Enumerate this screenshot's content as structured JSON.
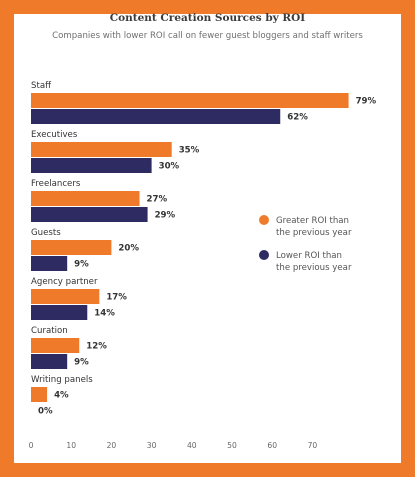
{
  "chart_data": {
    "type": "bar",
    "orientation": "horizontal",
    "title": "Content Creation Sources by ROI",
    "subtitle": "Companies with lower ROI call on fewer guest bloggers and staff writers",
    "categories": [
      "Staff",
      "Executives",
      "Freelancers",
      "Guests",
      "Agency partner",
      "Curation",
      "Writing panels"
    ],
    "series": [
      {
        "name": "Greater ROI than the previous year",
        "legend_lines": [
          "Greater ROI than",
          "the previous year"
        ],
        "color": "#ef7a2a",
        "values": [
          79,
          35,
          27,
          20,
          17,
          12,
          4
        ],
        "labels": [
          "79%",
          "35%",
          "27%",
          "20%",
          "17%",
          "12%",
          "4%"
        ]
      },
      {
        "name": "Lower ROI than the previous year",
        "legend_lines": [
          "Lower ROI than",
          "the previous year"
        ],
        "color": "#2e2b63",
        "values": [
          62,
          30,
          29,
          9,
          14,
          9,
          0
        ],
        "labels": [
          "62%",
          "30%",
          "29%",
          "9%",
          "14%",
          "9%",
          "0%"
        ]
      }
    ],
    "x_ticks": [
      0,
      10,
      20,
      30,
      40,
      50,
      60,
      70
    ],
    "xlim": [
      0,
      79
    ],
    "grid": false,
    "legend_position": "right"
  }
}
